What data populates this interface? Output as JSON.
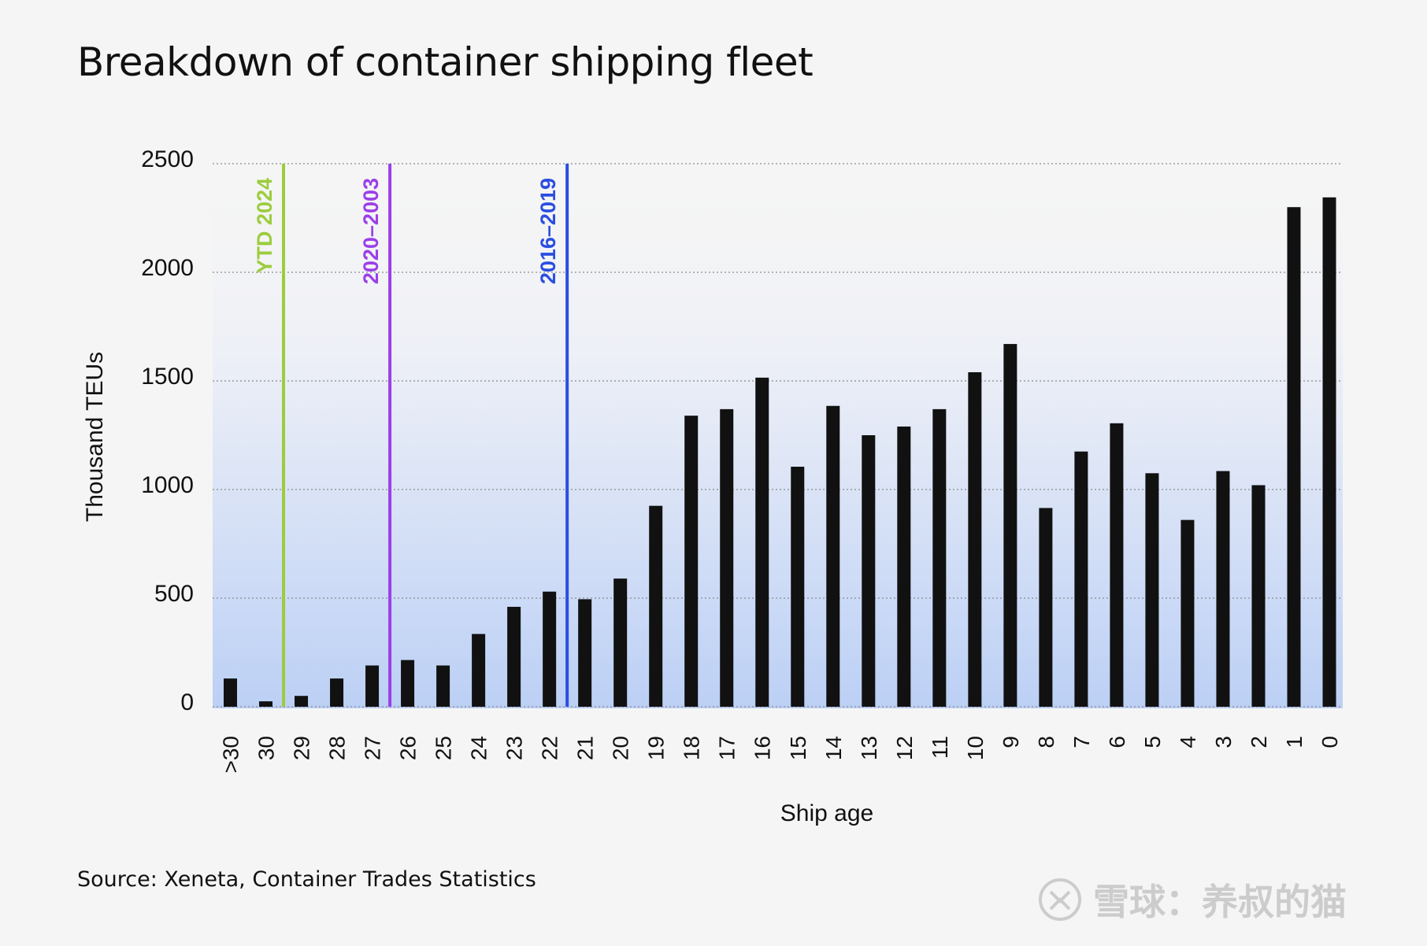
{
  "chart_data": {
    "type": "bar",
    "title": "Breakdown of container shipping fleet",
    "xlabel": "Ship age",
    "ylabel": "Thousand TEUs",
    "ylim": [
      0,
      2500
    ],
    "yticks": [
      0,
      500,
      1000,
      1500,
      2000,
      2500
    ],
    "grid": true,
    "categories": [
      ">30",
      "30",
      "29",
      "28",
      "27",
      "26",
      "25",
      "24",
      "23",
      "22",
      "21",
      "20",
      "19",
      "18",
      "17",
      "16",
      "15",
      "14",
      "13",
      "12",
      "11",
      "10",
      "9",
      "8",
      "7",
      "6",
      "5",
      "4",
      "3",
      "2",
      "1",
      "0"
    ],
    "values": [
      130,
      25,
      50,
      130,
      190,
      215,
      190,
      335,
      460,
      530,
      495,
      590,
      925,
      1340,
      1370,
      1515,
      1105,
      1385,
      1250,
      1290,
      1370,
      1540,
      1670,
      915,
      1175,
      1305,
      1075,
      860,
      1085,
      1020,
      2300,
      2345
    ],
    "bar_color": "#111111",
    "markers": [
      {
        "label": "YTD 2024",
        "after_category": "30",
        "color": "#9ccc3d"
      },
      {
        "label": "2020–2003",
        "after_category": "27",
        "color": "#9b3fe8"
      },
      {
        "label": "2016–2019",
        "after_category": "22",
        "color": "#2b4ee0"
      }
    ]
  },
  "source": "Source: Xeneta, Container Trades Statistics",
  "watermark": "雪球：养叔的猫"
}
